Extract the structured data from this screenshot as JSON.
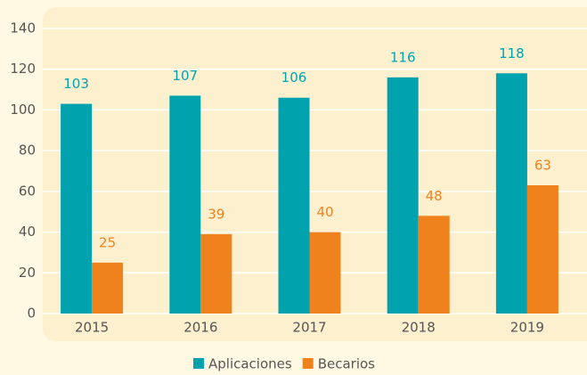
{
  "chart_data": {
    "type": "bar",
    "categories": [
      "2015",
      "2016",
      "2017",
      "2018",
      "2019"
    ],
    "series": [
      {
        "name": "Aplicaciones",
        "color": "#00a3ad",
        "values": [
          103,
          107,
          106,
          116,
          118
        ]
      },
      {
        "name": "Becarios",
        "color": "#f0821e",
        "values": [
          25,
          39,
          40,
          48,
          63
        ]
      }
    ],
    "ylim": [
      0,
      140
    ],
    "yticks": [
      0,
      20,
      40,
      60,
      80,
      100,
      120,
      140
    ],
    "grid": true,
    "legend": "bottom"
  }
}
